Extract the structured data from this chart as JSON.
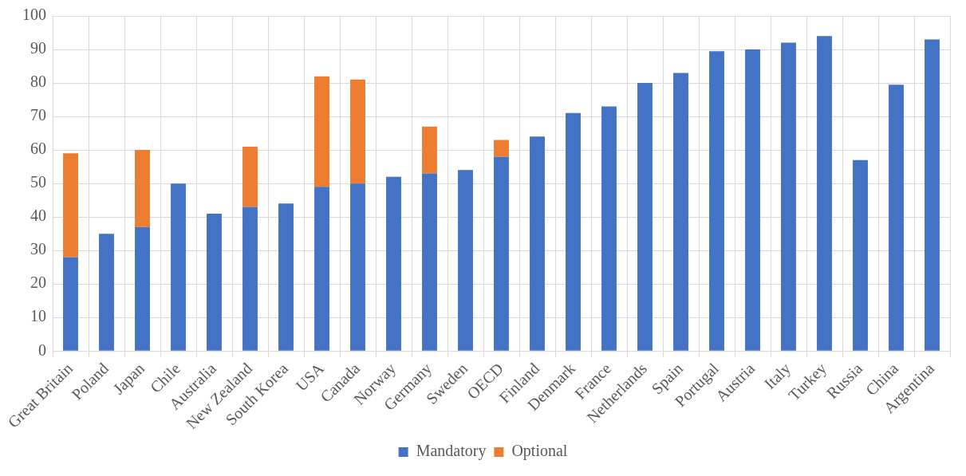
{
  "chart_data": {
    "type": "bar",
    "stacked": true,
    "categories": [
      "Great Britain",
      "Poland",
      "Japan",
      "Chile",
      "Australia",
      "New Zealand",
      "South Korea",
      "USA",
      "Canada",
      "Norway",
      "Germany",
      "Sweden",
      "OECD",
      "Finland",
      "Denmark",
      "France",
      "Netherlands",
      "Spain",
      "Portugal",
      "Austria",
      "Italy",
      "Turkey",
      "Russia",
      "China",
      "Argentina"
    ],
    "series": [
      {
        "name": "Mandatory",
        "color": "#4472c4",
        "values": [
          28,
          35,
          37,
          50,
          41,
          43,
          44,
          49,
          50,
          52,
          53,
          54,
          58,
          64,
          71,
          73,
          80,
          83,
          89.5,
          90,
          92,
          94,
          57,
          79.5,
          93
        ]
      },
      {
        "name": "Optional",
        "color": "#ed7d31",
        "values": [
          31,
          null,
          23,
          null,
          null,
          18,
          null,
          33,
          31,
          null,
          14,
          null,
          5,
          null,
          null,
          null,
          null,
          null,
          null,
          null,
          null,
          null,
          null,
          null,
          null
        ]
      }
    ],
    "ylim": [
      0,
      100
    ],
    "yticks": [
      0,
      10,
      20,
      30,
      40,
      50,
      60,
      70,
      80,
      90,
      100
    ],
    "grid": true,
    "legend": "bottom"
  }
}
